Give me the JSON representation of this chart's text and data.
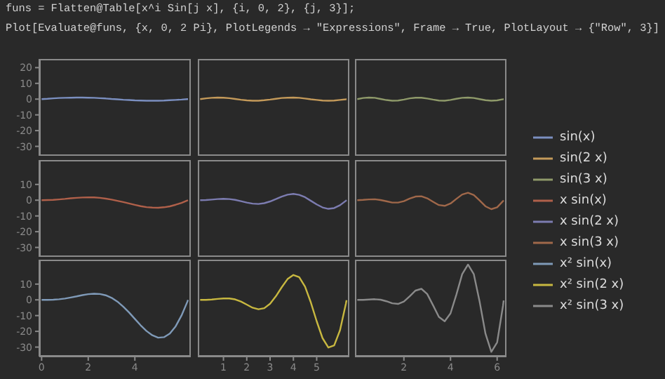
{
  "chart_data": [
    {
      "type": "line",
      "annotations": [
        "funs = Flatten@Table[x^i Sin[j x], {i, 0, 2}, {j, 3}];",
        "Plot[Evaluate@funs, {x, 0, 2 Pi}, PlotLegends → \"Expressions\", Frame → True, PlotLayout → {\"Row\", 3}]"
      ],
      "x": [
        0,
        0.25,
        0.5,
        0.75,
        1,
        1.25,
        1.5,
        1.75,
        2,
        2.25,
        2.5,
        2.75,
        3,
        3.25,
        3.5,
        3.75,
        4,
        4.25,
        4.5,
        4.75,
        5,
        5.25,
        5.5,
        5.75,
        6,
        6.25,
        6.28
      ],
      "xlim": [
        -0.1,
        6.4
      ],
      "ylim": [
        -36,
        25.5
      ],
      "yticks": [
        -30,
        -20,
        -10,
        0,
        10,
        20
      ],
      "tick_labels": "y",
      "legend": "right",
      "series": [
        {
          "name": "sin(x)",
          "color": "#7b8fc0",
          "values": [
            0,
            0.2,
            0.5,
            0.7,
            0.8,
            0.9,
            1,
            1,
            0.9,
            0.8,
            0.6,
            0.4,
            0.1,
            -0.1,
            -0.4,
            -0.6,
            -0.8,
            -0.9,
            -1,
            -1,
            -1,
            -0.9,
            -0.7,
            -0.5,
            -0.3,
            0,
            0
          ]
        }
      ]
    },
    {
      "type": "line",
      "x": [
        0,
        0.25,
        0.5,
        0.75,
        1,
        1.25,
        1.5,
        1.75,
        2,
        2.25,
        2.5,
        2.75,
        3,
        3.25,
        3.5,
        3.75,
        4,
        4.25,
        4.5,
        4.75,
        5,
        5.25,
        5.5,
        5.75,
        6,
        6.25,
        6.28
      ],
      "xlim": [
        -0.1,
        6.4
      ],
      "ylim": [
        -36,
        25.5
      ],
      "tick_labels": false,
      "legend": "right",
      "series": [
        {
          "name": "sin(2 x)",
          "color": "#c49a5a",
          "values": [
            0,
            0.5,
            0.8,
            1,
            0.9,
            0.6,
            0.1,
            -0.4,
            -0.8,
            -1,
            -1,
            -0.7,
            -0.3,
            0.2,
            0.7,
            0.9,
            1,
            0.8,
            0.4,
            -0.1,
            -0.5,
            -0.9,
            -1,
            -0.9,
            -0.5,
            -0.1,
            0
          ]
        }
      ]
    },
    {
      "type": "line",
      "x": [
        0,
        0.25,
        0.5,
        0.75,
        1,
        1.25,
        1.5,
        1.75,
        2,
        2.25,
        2.5,
        2.75,
        3,
        3.25,
        3.5,
        3.75,
        4,
        4.25,
        4.5,
        4.75,
        5,
        5.25,
        5.5,
        5.75,
        6,
        6.25,
        6.28
      ],
      "xlim": [
        -0.1,
        6.4
      ],
      "ylim": [
        -36,
        25.5
      ],
      "tick_labels": false,
      "legend": "right",
      "series": [
        {
          "name": "sin(3 x)",
          "color": "#8f9a6a",
          "values": [
            0,
            0.7,
            1,
            0.8,
            0.1,
            -0.6,
            -1,
            -0.9,
            -0.3,
            0.5,
            0.9,
            0.9,
            0.4,
            -0.3,
            -0.9,
            -1,
            -0.5,
            0.2,
            0.8,
            1,
            0.7,
            0,
            -0.7,
            -1,
            -0.8,
            -0.1,
            0
          ]
        }
      ]
    },
    {
      "type": "line",
      "x": [
        0,
        0.25,
        0.5,
        0.75,
        1,
        1.25,
        1.5,
        1.75,
        2,
        2.25,
        2.5,
        2.75,
        3,
        3.25,
        3.5,
        3.75,
        4,
        4.25,
        4.5,
        4.75,
        5,
        5.25,
        5.5,
        5.75,
        6,
        6.25,
        6.28
      ],
      "xlim": [
        -0.1,
        6.4
      ],
      "ylim": [
        -36,
        25.5
      ],
      "yticks": [
        -30,
        -20,
        -10,
        0,
        10
      ],
      "tick_labels": "y",
      "legend": "right",
      "series": [
        {
          "name": "x sin(x)",
          "color": "#b0604a",
          "values": [
            0,
            0.1,
            0.2,
            0.5,
            0.8,
            1.2,
            1.5,
            1.7,
            1.8,
            1.8,
            1.5,
            1,
            0.4,
            -0.4,
            -1.2,
            -2.1,
            -3,
            -3.8,
            -4.4,
            -4.7,
            -4.8,
            -4.5,
            -3.9,
            -2.9,
            -1.7,
            -0.2,
            0
          ]
        }
      ]
    },
    {
      "type": "line",
      "x": [
        0,
        0.25,
        0.5,
        0.75,
        1,
        1.25,
        1.5,
        1.75,
        2,
        2.25,
        2.5,
        2.75,
        3,
        3.25,
        3.5,
        3.75,
        4,
        4.25,
        4.5,
        4.75,
        5,
        5.25,
        5.5,
        5.75,
        6,
        6.25,
        6.28
      ],
      "xlim": [
        -0.1,
        6.4
      ],
      "ylim": [
        -36,
        25.5
      ],
      "tick_labels": false,
      "legend": "right",
      "series": [
        {
          "name": "x sin(2 x)",
          "color": "#7c7cb0",
          "values": [
            0,
            0.1,
            0.4,
            0.7,
            0.9,
            0.7,
            0.2,
            -0.6,
            -1.5,
            -2.2,
            -2.4,
            -1.9,
            -0.8,
            0.7,
            2.3,
            3.5,
            4,
            3.4,
            1.9,
            -0.4,
            -2.7,
            -4.6,
            -5.5,
            -5,
            -3.2,
            -0.4,
            0
          ]
        }
      ]
    },
    {
      "type": "line",
      "x": [
        0,
        0.25,
        0.5,
        0.75,
        1,
        1.25,
        1.5,
        1.75,
        2,
        2.25,
        2.5,
        2.75,
        3,
        3.25,
        3.5,
        3.75,
        4,
        4.25,
        4.5,
        4.75,
        5,
        5.25,
        5.5,
        5.75,
        6,
        6.25,
        6.28
      ],
      "xlim": [
        -0.1,
        6.4
      ],
      "ylim": [
        -36,
        25.5
      ],
      "tick_labels": false,
      "legend": "right",
      "series": [
        {
          "name": "x sin(3 x)",
          "color": "#a0684a",
          "values": [
            0,
            0.2,
            0.5,
            0.6,
            0.1,
            -0.7,
            -1.5,
            -1.5,
            -0.6,
            1,
            2.3,
            2.5,
            1.2,
            -1,
            -3.1,
            -3.6,
            -2.1,
            0.8,
            3.6,
            4.7,
            3.3,
            -0.2,
            -3.9,
            -5.7,
            -4.5,
            -0.6,
            -0.1
          ]
        }
      ]
    },
    {
      "type": "line",
      "x": [
        0,
        0.25,
        0.5,
        0.75,
        1,
        1.25,
        1.5,
        1.75,
        2,
        2.25,
        2.5,
        2.75,
        3,
        3.25,
        3.5,
        3.75,
        4,
        4.25,
        4.5,
        4.75,
        5,
        5.25,
        5.5,
        5.75,
        6,
        6.25,
        6.28
      ],
      "xlim": [
        -0.1,
        6.4
      ],
      "ylim": [
        -36,
        25.5
      ],
      "xticks": [
        0,
        2,
        4
      ],
      "yticks": [
        -30,
        -20,
        -10,
        0,
        10
      ],
      "legend": "right",
      "series": [
        {
          "name": "x² sin(x)",
          "color": "#7f9ab8",
          "values": [
            0,
            0,
            0.1,
            0.4,
            0.8,
            1.5,
            2.2,
            3,
            3.6,
            3.9,
            3.7,
            2.9,
            1.3,
            -1.1,
            -4.3,
            -8,
            -12.1,
            -16.2,
            -19.8,
            -22.5,
            -24,
            -23.7,
            -21.4,
            -16.8,
            -10,
            -1.3,
            -0.1
          ]
        }
      ]
    },
    {
      "type": "line",
      "x": [
        0,
        0.25,
        0.5,
        0.75,
        1,
        1.25,
        1.5,
        1.75,
        2,
        2.25,
        2.5,
        2.75,
        3,
        3.25,
        3.5,
        3.75,
        4,
        4.25,
        4.5,
        4.75,
        5,
        5.25,
        5.5,
        5.75,
        6,
        6.25,
        6.28
      ],
      "xlim": [
        -0.1,
        6.4
      ],
      "ylim": [
        -36,
        25.5
      ],
      "xticks": [
        1,
        2,
        3,
        4,
        5
      ],
      "tick_labels": "x",
      "legend": "right",
      "series": [
        {
          "name": "x² sin(2 x)",
          "color": "#c8b840",
          "values": [
            0,
            0,
            0.2,
            0.6,
            0.9,
            0.9,
            0.3,
            -1.1,
            -3,
            -5,
            -6,
            -5.3,
            -2.5,
            2.3,
            8,
            13.2,
            15.8,
            14.4,
            8.4,
            -1.7,
            -13.6,
            -24.3,
            -30.3,
            -28.9,
            -19.3,
            -2.6,
            -0.2
          ]
        }
      ]
    },
    {
      "type": "line",
      "x": [
        0,
        0.25,
        0.5,
        0.75,
        1,
        1.25,
        1.5,
        1.75,
        2,
        2.25,
        2.5,
        2.75,
        3,
        3.25,
        3.5,
        3.75,
        4,
        4.25,
        4.5,
        4.75,
        5,
        5.25,
        5.5,
        5.75,
        6,
        6.25,
        6.28
      ],
      "xlim": [
        -0.1,
        6.4
      ],
      "ylim": [
        -36,
        25.5
      ],
      "xticks": [
        2,
        4,
        6
      ],
      "tick_labels": "x",
      "legend": "right",
      "series": [
        {
          "name": "x² sin(3 x)",
          "color": "#8a8a8a",
          "values": [
            0,
            0,
            0.2,
            0.4,
            0.1,
            -0.9,
            -2.2,
            -2.6,
            -1.1,
            2.3,
            5.9,
            7,
            3.7,
            -3.4,
            -10.8,
            -13.6,
            -8.6,
            3.3,
            16.3,
            22.4,
            16.3,
            -1.2,
            -21.5,
            -33,
            -27,
            -3.9,
            -0.4
          ]
        }
      ]
    }
  ]
}
